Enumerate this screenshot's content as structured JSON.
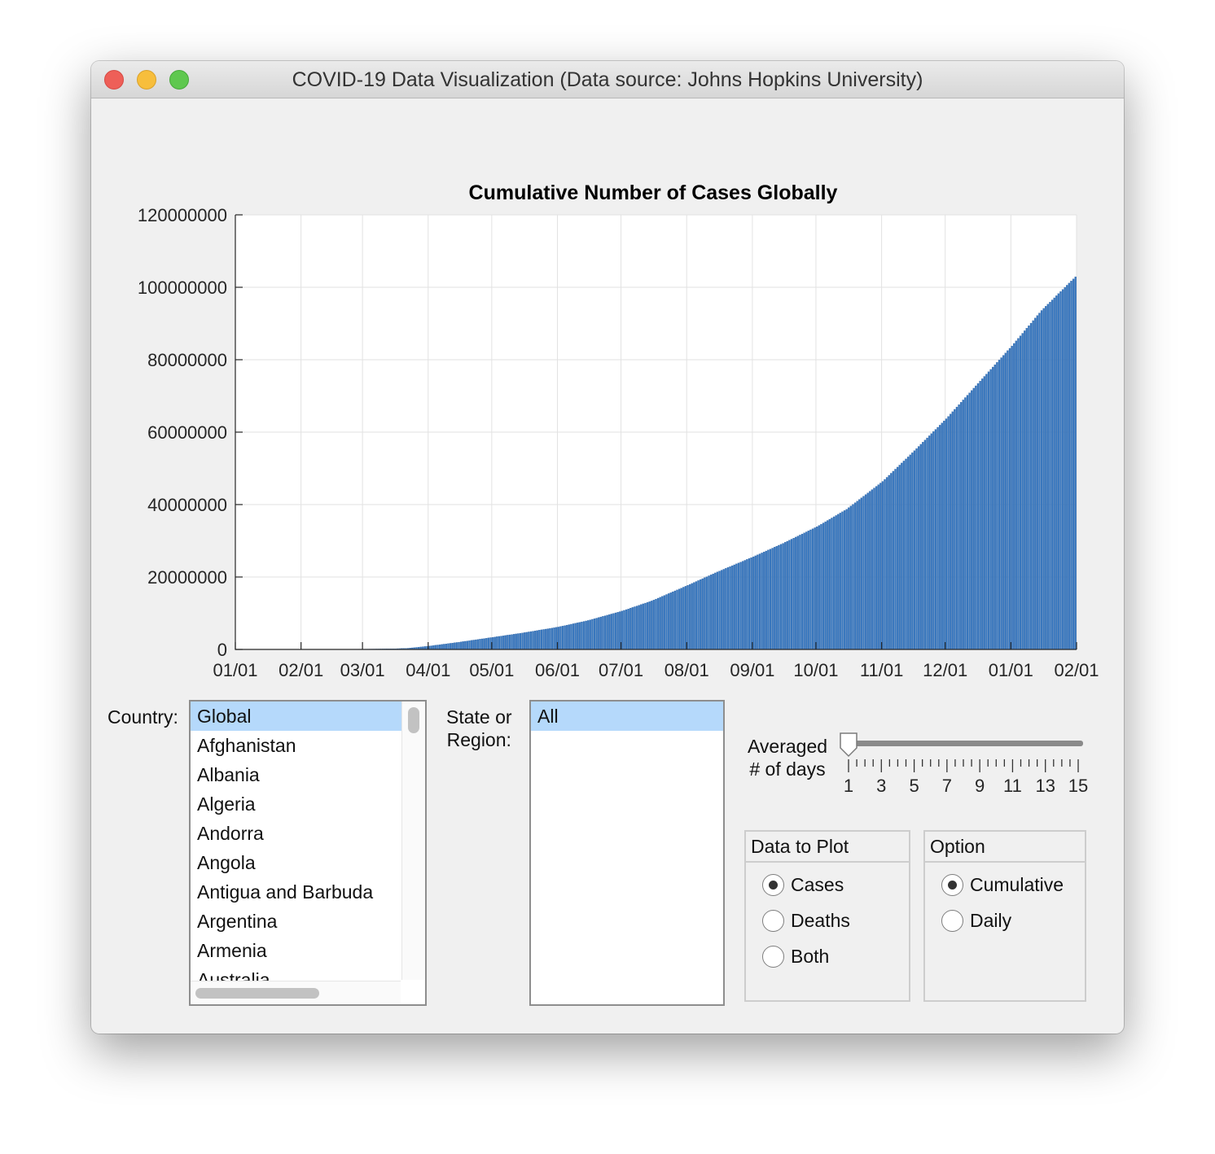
{
  "window": {
    "title": "COVID-19 Data Visualization (Data source: Johns Hopkins University)"
  },
  "chart_data": {
    "type": "bar",
    "title": "Cumulative Number of Cases Globally",
    "xlabel": "",
    "ylabel": "",
    "x_ticks": [
      "01/01",
      "02/01",
      "03/01",
      "04/01",
      "05/01",
      "06/01",
      "07/01",
      "08/01",
      "09/01",
      "10/01",
      "11/01",
      "12/01",
      "01/01",
      "02/01"
    ],
    "y_ticks": [
      "0",
      "20000000",
      "40000000",
      "60000000",
      "80000000",
      "100000000",
      "120000000"
    ],
    "ylim": [
      0,
      120000000
    ],
    "xlim": [
      "2020-01-01",
      "2021-02-01"
    ],
    "grid": true,
    "color": "#3a79c0",
    "series": [
      {
        "points": [
          [
            "2020-01-22",
            555
          ],
          [
            "2020-02-01",
            12000
          ],
          [
            "2020-02-15",
            69000
          ],
          [
            "2020-03-01",
            88000
          ],
          [
            "2020-03-15",
            170000
          ],
          [
            "2020-03-22",
            330000
          ],
          [
            "2020-04-01",
            930000
          ],
          [
            "2020-04-15",
            2000000
          ],
          [
            "2020-05-01",
            3350000
          ],
          [
            "2020-05-15",
            4550000
          ],
          [
            "2020-06-01",
            6200000
          ],
          [
            "2020-06-15",
            8000000
          ],
          [
            "2020-07-01",
            10600000
          ],
          [
            "2020-07-15",
            13400000
          ],
          [
            "2020-08-01",
            17700000
          ],
          [
            "2020-08-15",
            21400000
          ],
          [
            "2020-09-01",
            25600000
          ],
          [
            "2020-09-15",
            29300000
          ],
          [
            "2020-10-01",
            33900000
          ],
          [
            "2020-10-15",
            38700000
          ],
          [
            "2020-11-01",
            46400000
          ],
          [
            "2020-11-15",
            54300000
          ],
          [
            "2020-12-01",
            63700000
          ],
          [
            "2020-12-15",
            72800000
          ],
          [
            "2021-01-01",
            83800000
          ],
          [
            "2021-01-15",
            93600000
          ],
          [
            "2021-01-31",
            102900000
          ]
        ]
      }
    ]
  },
  "country": {
    "label": "Country:",
    "items": [
      "Global",
      "Afghanistan",
      "Albania",
      "Algeria",
      "Andorra",
      "Angola",
      "Antigua and Barbuda",
      "Argentina",
      "Armenia",
      "Australia"
    ],
    "selected": "Global"
  },
  "region": {
    "label_line1": "State or",
    "label_line2": "Region:",
    "items": [
      "All"
    ],
    "selected": "All"
  },
  "averaging": {
    "label_line1": "Averaged",
    "label_line2": "# of days",
    "min": 1,
    "max": 15,
    "value": 1,
    "tick_labels": [
      "1",
      "3",
      "5",
      "7",
      "9",
      "11",
      "13",
      "15"
    ]
  },
  "data_to_plot": {
    "title": "Data to Plot",
    "options": [
      "Cases",
      "Deaths",
      "Both"
    ],
    "selected": "Cases"
  },
  "plot_option": {
    "title": "Option",
    "options": [
      "Cumulative",
      "Daily"
    ],
    "selected": "Cumulative"
  }
}
